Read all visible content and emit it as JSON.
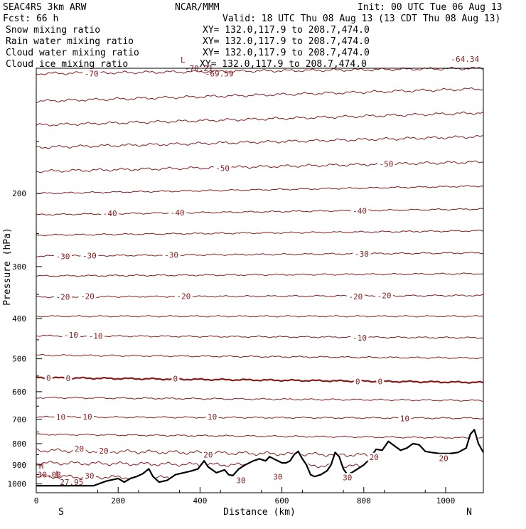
{
  "header": {
    "model": "SEAC4RS  3km ARW",
    "forecast": "Fcst:    66 h",
    "org": "NCAR/MMM",
    "init": "Init: 00 UTC Tue 06 Aug 13",
    "valid": "Valid: 18 UTC Thu 08 Aug 13 (13 CDT Thu 08 Aug 13)"
  },
  "fields": [
    {
      "label": "Snow mixing ratio",
      "xy": "XY=  132.0,117.9 to 208.7,474.0",
      "color": "#000000"
    },
    {
      "label": "Rain water mixing ratio",
      "xy": "XY=  132.0,117.9 to 208.7,474.0",
      "color": "#e00000"
    },
    {
      "label": "Cloud water mixing ratio",
      "xy": "XY=  132.0,117.9 to 208.7,474.0",
      "color": "#1010c0"
    },
    {
      "label": "Cloud ice mixing ratio",
      "xy": "XY=  132.0,117.9 to 208.7,474.0",
      "color": "#000000"
    }
  ],
  "chart_data": {
    "type": "line",
    "xlabel": "Distance (km)",
    "ylabel": "Pressure (hPa)",
    "xlim": [
      0,
      1092
    ],
    "ylim": [
      1050,
      100
    ],
    "y_scale": "log-pressure",
    "x_ticks": [
      "0",
      "200",
      "400",
      "600",
      "800",
      "1000"
    ],
    "x_tick_values": [
      0,
      200,
      400,
      600,
      800,
      1000
    ],
    "y_ticks": [
      "200",
      "300",
      "400",
      "500",
      "600",
      "700",
      "800",
      "900",
      "1000"
    ],
    "y_tick_values": [
      200,
      300,
      400,
      500,
      600,
      700,
      800,
      900,
      1000
    ],
    "x_end_labels": {
      "left": "S",
      "right": "N"
    },
    "isotherm_color": "#8b1a1a",
    "terrain_color": "#000000",
    "isotherms": [
      {
        "level": -70,
        "p_left": 103,
        "p_right": 100,
        "labels": [
          {
            "x": 135,
            "text": "-70"
          }
        ]
      },
      {
        "level": -65,
        "p_left": 120,
        "p_right": 112,
        "labels": []
      },
      {
        "level": -60,
        "p_left": 137,
        "p_right": 128,
        "labels": []
      },
      {
        "level": -55,
        "p_left": 155,
        "p_right": 146,
        "labels": []
      },
      {
        "level": -50,
        "p_left": 177,
        "p_right": 168,
        "labels": [
          {
            "x": 455,
            "text": "-50"
          },
          {
            "x": 855,
            "text": "-50"
          }
        ]
      },
      {
        "level": -45,
        "p_left": 200,
        "p_right": 192,
        "labels": []
      },
      {
        "level": -40,
        "p_left": 225,
        "p_right": 218,
        "labels": [
          {
            "x": 180,
            "text": "-40"
          },
          {
            "x": 345,
            "text": "-40"
          },
          {
            "x": 790,
            "text": "-40"
          }
        ]
      },
      {
        "level": -35,
        "p_left": 252,
        "p_right": 246,
        "labels": []
      },
      {
        "level": -30,
        "p_left": 283,
        "p_right": 278,
        "labels": [
          {
            "x": 65,
            "text": "-30"
          },
          {
            "x": 130,
            "text": "-30"
          },
          {
            "x": 330,
            "text": "-30"
          },
          {
            "x": 795,
            "text": "-30"
          }
        ]
      },
      {
        "level": -25,
        "p_left": 316,
        "p_right": 312,
        "labels": []
      },
      {
        "level": -20,
        "p_left": 355,
        "p_right": 352,
        "labels": [
          {
            "x": 65,
            "text": "-20"
          },
          {
            "x": 125,
            "text": "-20"
          },
          {
            "x": 360,
            "text": "-20"
          },
          {
            "x": 780,
            "text": "-20"
          },
          {
            "x": 850,
            "text": "-20"
          }
        ]
      },
      {
        "level": -15,
        "p_left": 395,
        "p_right": 395,
        "labels": []
      },
      {
        "level": -10,
        "p_left": 440,
        "p_right": 445,
        "labels": [
          {
            "x": 85,
            "text": "-10"
          },
          {
            "x": 145,
            "text": "-10"
          },
          {
            "x": 790,
            "text": "-10"
          }
        ]
      },
      {
        "level": -5,
        "p_left": 490,
        "p_right": 498,
        "labels": []
      },
      {
        "level": 0,
        "p_left": 555,
        "p_right": 570,
        "labels": [
          {
            "x": 30,
            "text": "0"
          },
          {
            "x": 78,
            "text": "0"
          },
          {
            "x": 340,
            "text": "0"
          },
          {
            "x": 785,
            "text": "0"
          },
          {
            "x": 840,
            "text": "0"
          }
        ]
      },
      {
        "level": 5,
        "p_left": 620,
        "p_right": 630,
        "labels": []
      },
      {
        "level": 10,
        "p_left": 690,
        "p_right": 695,
        "labels": [
          {
            "x": 60,
            "text": "10"
          },
          {
            "x": 125,
            "text": "10"
          },
          {
            "x": 430,
            "text": "10"
          },
          {
            "x": 900,
            "text": "10"
          }
        ]
      },
      {
        "level": 15,
        "p_left": 760,
        "p_right": 775,
        "labels": []
      },
      {
        "level": 20,
        "p_left": 830,
        "p_right": 860,
        "labels": [
          {
            "x": 105,
            "text": "20"
          },
          {
            "x": 165,
            "text": "20"
          },
          {
            "x": 420,
            "text": "20"
          },
          {
            "x": 825,
            "text": "20"
          },
          {
            "x": 995,
            "text": "20"
          }
        ]
      },
      {
        "level": 25,
        "p_left": 890,
        "p_right": 912,
        "labels": []
      },
      {
        "level": 30,
        "p_left": 960,
        "p_right": 980,
        "labels": [
          {
            "x": 130,
            "text": "30"
          },
          {
            "x": 500,
            "text": "30"
          },
          {
            "x": 590,
            "text": "30"
          },
          {
            "x": 760,
            "text": "30"
          }
        ]
      }
    ],
    "terrain": [
      [
        0,
        1010
      ],
      [
        140,
        1010
      ],
      [
        170,
        985
      ],
      [
        200,
        970
      ],
      [
        215,
        990
      ],
      [
        230,
        970
      ],
      [
        245,
        960
      ],
      [
        260,
        945
      ],
      [
        275,
        920
      ],
      [
        285,
        960
      ],
      [
        300,
        990
      ],
      [
        320,
        980
      ],
      [
        340,
        950
      ],
      [
        360,
        940
      ],
      [
        380,
        930
      ],
      [
        395,
        920
      ],
      [
        410,
        880
      ],
      [
        420,
        910
      ],
      [
        440,
        940
      ],
      [
        460,
        925
      ],
      [
        470,
        950
      ],
      [
        480,
        955
      ],
      [
        495,
        920
      ],
      [
        510,
        900
      ],
      [
        530,
        880
      ],
      [
        545,
        870
      ],
      [
        560,
        880
      ],
      [
        570,
        860
      ],
      [
        580,
        870
      ],
      [
        600,
        890
      ],
      [
        610,
        890
      ],
      [
        620,
        880
      ],
      [
        630,
        850
      ],
      [
        640,
        835
      ],
      [
        650,
        870
      ],
      [
        660,
        900
      ],
      [
        670,
        950
      ],
      [
        680,
        960
      ],
      [
        695,
        950
      ],
      [
        710,
        930
      ],
      [
        720,
        900
      ],
      [
        730,
        840
      ],
      [
        740,
        860
      ],
      [
        750,
        920
      ],
      [
        760,
        950
      ],
      [
        770,
        940
      ],
      [
        785,
        920
      ],
      [
        800,
        900
      ],
      [
        815,
        870
      ],
      [
        825,
        840
      ],
      [
        830,
        825
      ],
      [
        845,
        830
      ],
      [
        860,
        790
      ],
      [
        875,
        810
      ],
      [
        890,
        830
      ],
      [
        905,
        820
      ],
      [
        920,
        800
      ],
      [
        935,
        805
      ],
      [
        950,
        835
      ],
      [
        965,
        840
      ],
      [
        985,
        845
      ],
      [
        1010,
        845
      ],
      [
        1030,
        840
      ],
      [
        1050,
        820
      ],
      [
        1060,
        760
      ],
      [
        1070,
        740
      ],
      [
        1080,
        800
      ],
      [
        1092,
        840
      ]
    ],
    "extrema": [
      {
        "marker": "L",
        "value": "-70.21",
        "x": 335,
        "p": 100
      },
      {
        "marker": "",
        "value": "-69.59",
        "x": 385,
        "p": 103
      },
      {
        "marker": "",
        "value": "-64.34",
        "x": 985,
        "p": 95
      },
      {
        "marker": "H",
        "value": "30.08",
        "x": 3,
        "p": 950
      },
      {
        "marker": "L",
        "value": "27.95",
        "x": 30,
        "p": 990
      }
    ]
  }
}
